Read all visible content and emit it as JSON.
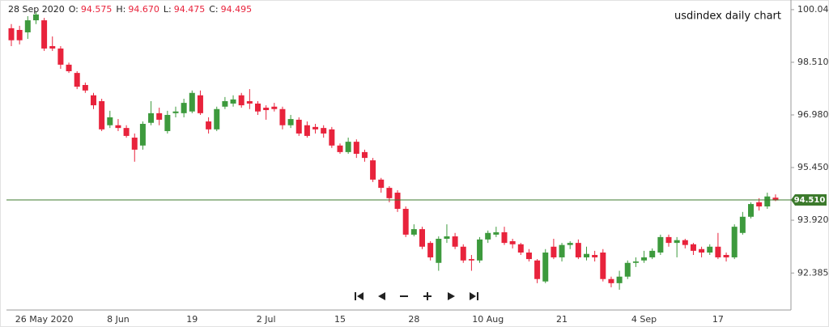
{
  "header": {
    "date": "28 Sep 2020",
    "fields": [
      {
        "label": "O:",
        "value": "94.575"
      },
      {
        "label": "H:",
        "value": "94.670"
      },
      {
        "label": "L:",
        "value": "94.475"
      },
      {
        "label": "C:",
        "value": "94.495"
      }
    ]
  },
  "chart_data": {
    "type": "candlestick",
    "title": "usdindex daily chart",
    "up_color": "#3d9a3d",
    "down_color": "#e8233c",
    "price_line_color": "#3c7a2c",
    "categories": [
      null,
      null,
      null,
      null,
      "26 May 2020",
      null,
      null,
      null,
      null,
      null,
      null,
      null,
      null,
      "8 Jun",
      null,
      null,
      null,
      null,
      null,
      null,
      null,
      null,
      "19",
      null,
      null,
      null,
      null,
      null,
      null,
      null,
      null,
      "2 Jul",
      null,
      null,
      null,
      null,
      null,
      null,
      null,
      null,
      "15",
      null,
      null,
      null,
      null,
      null,
      null,
      null,
      null,
      "28",
      null,
      null,
      null,
      null,
      null,
      null,
      null,
      null,
      "10 Aug",
      null,
      null,
      null,
      null,
      null,
      null,
      null,
      null,
      "21",
      null,
      null,
      null,
      null,
      null,
      null,
      null,
      null,
      null,
      "4 Sep",
      null,
      null,
      null,
      null,
      null,
      null,
      null,
      null,
      "17",
      null,
      null,
      null,
      null,
      null,
      null,
      null
    ],
    "open": [
      99.5,
      99.45,
      99.38,
      99.73,
      99.73,
      98.98,
      98.91,
      98.44,
      98.2,
      97.85,
      97.55,
      97.38,
      96.68,
      96.68,
      96.6,
      96.32,
      96.09,
      96.75,
      97.03,
      96.51,
      97.03,
      97.03,
      97.08,
      97.55,
      96.79,
      96.56,
      97.22,
      97.31,
      97.55,
      97.38,
      97.31,
      97.19,
      97.22,
      97.15,
      96.68,
      96.84,
      96.68,
      96.63,
      96.6,
      96.56,
      96.09,
      95.9,
      96.2,
      95.9,
      95.66,
      95.1,
      94.86,
      94.72,
      94.25,
      93.5,
      93.66,
      93.26,
      92.68,
      93.38,
      93.45,
      93.15,
      92.79,
      92.75,
      93.36,
      93.5,
      93.57,
      93.31,
      93.22,
      92.98,
      92.75,
      92.14,
      93.15,
      92.84,
      93.2,
      93.26,
      92.84,
      92.91,
      92.98,
      92.21,
      92.09,
      92.28,
      92.68,
      92.75,
      92.84,
      92.98,
      93.43,
      93.26,
      93.34,
      93.22,
      93.08,
      92.98,
      93.15,
      92.91,
      92.84,
      93.55,
      94.02,
      94.44,
      94.32,
      94.575
    ],
    "high": [
      99.62,
      99.57,
      99.85,
      99.99,
      99.8,
      99.26,
      98.98,
      98.5,
      98.25,
      97.92,
      97.62,
      97.45,
      97.1,
      96.86,
      96.68,
      96.44,
      96.79,
      97.38,
      97.19,
      97.1,
      97.22,
      97.45,
      97.69,
      97.69,
      96.91,
      97.22,
      97.5,
      97.55,
      97.62,
      97.73,
      97.38,
      97.26,
      97.33,
      97.22,
      96.98,
      96.91,
      96.79,
      96.72,
      96.68,
      96.63,
      96.15,
      96.32,
      96.27,
      95.97,
      95.73,
      95.15,
      94.91,
      94.79,
      94.32,
      93.8,
      93.73,
      93.31,
      93.45,
      93.8,
      93.55,
      93.22,
      92.91,
      93.43,
      93.62,
      93.73,
      93.73,
      93.38,
      93.26,
      93.08,
      92.79,
      93.08,
      93.38,
      93.26,
      93.31,
      93.36,
      93.15,
      93.03,
      93.08,
      92.28,
      92.45,
      92.75,
      92.84,
      93.03,
      93.1,
      93.5,
      93.5,
      93.43,
      93.38,
      93.26,
      93.15,
      93.22,
      93.55,
      92.98,
      93.8,
      94.16,
      94.44,
      94.56,
      94.72,
      94.67
    ],
    "low": [
      98.98,
      99.03,
      99.19,
      99.62,
      98.84,
      98.84,
      98.32,
      98.2,
      97.73,
      97.62,
      97.15,
      96.51,
      96.6,
      96.51,
      96.32,
      95.62,
      95.97,
      96.68,
      96.68,
      96.44,
      96.91,
      96.91,
      97.03,
      96.98,
      96.44,
      96.51,
      97.15,
      97.22,
      97.19,
      97.15,
      96.98,
      96.84,
      97.08,
      96.56,
      96.6,
      96.37,
      96.32,
      96.44,
      96.32,
      96.02,
      95.85,
      95.85,
      95.73,
      95.62,
      95.03,
      94.72,
      94.44,
      94.16,
      93.43,
      93.45,
      93.08,
      92.75,
      92.45,
      93.26,
      93.08,
      92.68,
      92.45,
      92.68,
      93.26,
      93.43,
      93.2,
      93.1,
      92.91,
      92.72,
      92.09,
      92.09,
      92.79,
      92.72,
      93.08,
      92.79,
      92.75,
      92.72,
      92.14,
      91.97,
      91.9,
      92.21,
      92.56,
      92.68,
      92.79,
      92.91,
      93.15,
      92.84,
      93.1,
      92.91,
      92.84,
      92.91,
      92.79,
      92.72,
      92.79,
      93.5,
      93.97,
      94.2,
      94.25,
      94.475
    ],
    "close": [
      99.15,
      99.15,
      99.73,
      99.9,
      98.91,
      98.91,
      98.44,
      98.25,
      97.8,
      97.69,
      97.26,
      96.56,
      96.91,
      96.6,
      96.37,
      95.97,
      96.72,
      97.03,
      96.84,
      96.98,
      97.08,
      97.33,
      97.62,
      97.03,
      96.56,
      97.15,
      97.38,
      97.43,
      97.26,
      97.31,
      97.08,
      97.12,
      97.15,
      96.68,
      96.86,
      96.44,
      96.37,
      96.56,
      96.44,
      96.09,
      95.9,
      96.2,
      95.85,
      95.73,
      95.1,
      94.86,
      94.56,
      94.25,
      93.5,
      93.66,
      93.15,
      92.84,
      93.38,
      93.45,
      93.15,
      92.75,
      92.75,
      93.36,
      93.55,
      93.57,
      93.26,
      93.22,
      92.98,
      92.79,
      92.21,
      92.98,
      92.84,
      93.2,
      93.26,
      92.84,
      92.94,
      92.84,
      92.21,
      92.09,
      92.28,
      92.68,
      92.72,
      92.84,
      93.03,
      93.43,
      93.26,
      93.34,
      93.2,
      93.03,
      92.98,
      93.15,
      92.84,
      92.84,
      93.73,
      94.02,
      94.39,
      94.32,
      94.61,
      94.495
    ],
    "last_price": {
      "value": 94.51,
      "label": "94.510"
    },
    "ylim": [
      91.31,
      100.32
    ],
    "yticks": [
      {
        "value": 92.385,
        "label": "92.385"
      },
      {
        "value": 93.92,
        "label": "93.920"
      },
      {
        "value": 95.45,
        "label": "95.450"
      },
      {
        "value": 96.98,
        "label": "96.980"
      },
      {
        "value": 98.51,
        "label": "98.510"
      },
      {
        "value": 100.04,
        "label": "100.040"
      }
    ]
  }
}
